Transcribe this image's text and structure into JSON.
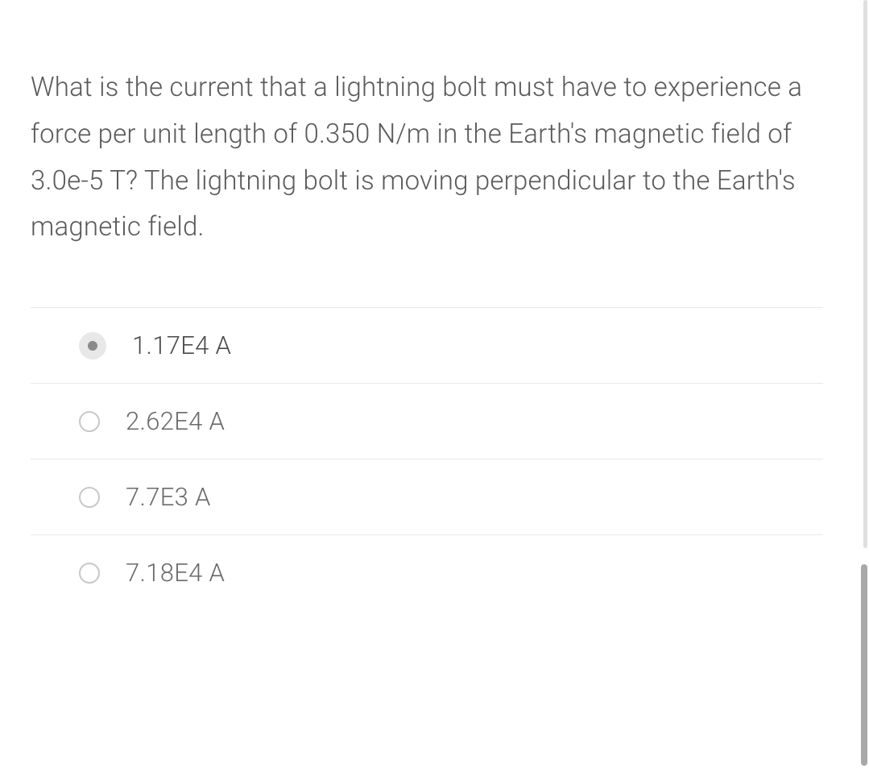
{
  "question": {
    "text": "What is the current that a lightning bolt must have to experience a force per unit length of 0.350 N/m in the Earth's magnetic field of 3.0e-5 T? The lightning bolt is moving perpendicular to the Earth's magnetic field."
  },
  "options": [
    {
      "label": "1.17E4 A",
      "selected": true
    },
    {
      "label": "2.62E4 A",
      "selected": false
    },
    {
      "label": "7.7E3 A",
      "selected": false
    },
    {
      "label": "7.18E4 A",
      "selected": false
    }
  ],
  "colors": {
    "text_primary": "#5a5a5a",
    "text_option": "#6a6a6a",
    "border": "#e8e8e8",
    "radio_border": "#c8c8c8",
    "radio_selected_bg": "#e8e8e8",
    "radio_selected_dot": "#8a8a8a",
    "background": "#ffffff"
  },
  "typography": {
    "question_fontsize": 33,
    "option_fontsize": 31,
    "font_weight": 300
  }
}
